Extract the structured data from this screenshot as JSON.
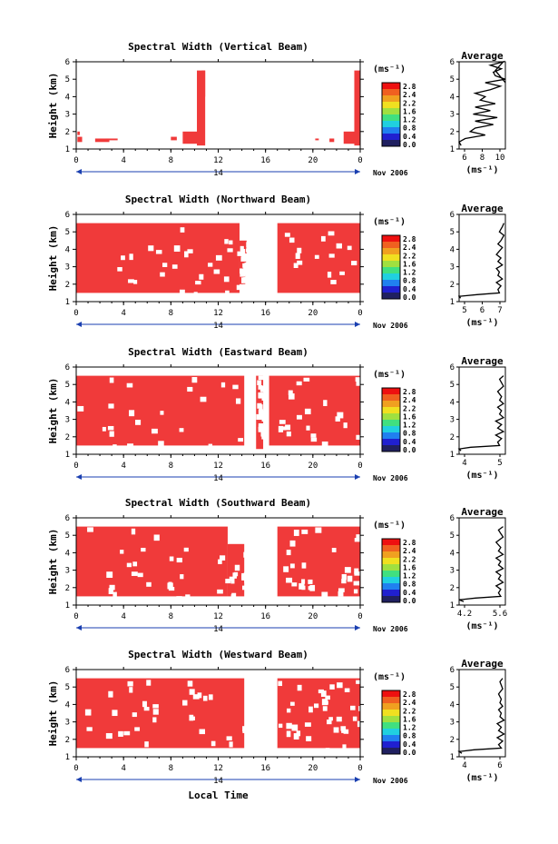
{
  "figure": {
    "xlabel": "Local Time",
    "date_label": "Nov 2006",
    "day_label": "14",
    "ylabel": "Height (km)",
    "unit": "(ms⁻¹)",
    "avg_title": "Average",
    "avg_xlabel": "(ms⁻¹)"
  },
  "colorbar": {
    "ticks": [
      "2.8",
      "2.4",
      "2.2",
      "1.6",
      "1.2",
      "0.8",
      "0.4",
      "0.0"
    ],
    "colors": [
      "#ee1010",
      "#f06020",
      "#f0a020",
      "#f0e020",
      "#a0e040",
      "#40e080",
      "#20d0e0",
      "#2080f0",
      "#2020d0",
      "#202060"
    ]
  },
  "chart_data": [
    {
      "type": "heatmap",
      "title": "Spectral Width (Vertical Beam)",
      "x_ticks": [
        "0",
        "4",
        "8",
        "12",
        "16",
        "20",
        "0"
      ],
      "y_ticks": [
        "1",
        "2",
        "3",
        "4",
        "5",
        "6"
      ],
      "xlim": [
        0,
        24
      ],
      "ylim": [
        1,
        6
      ],
      "blocks": [
        [
          0.1,
          0.5,
          1.4,
          1.7
        ],
        [
          0.1,
          0.3,
          1.8,
          2.0
        ],
        [
          1.6,
          2.8,
          1.4,
          1.6
        ],
        [
          2.5,
          3.5,
          1.5,
          1.6
        ],
        [
          8.0,
          8.5,
          1.5,
          1.7
        ],
        [
          9.0,
          10.4,
          1.3,
          2.0
        ],
        [
          10.2,
          10.9,
          1.2,
          5.5
        ],
        [
          10.6,
          10.9,
          4.0,
          5.5
        ],
        [
          20.2,
          20.5,
          1.5,
          1.6
        ],
        [
          21.4,
          21.8,
          1.4,
          1.6
        ],
        [
          22.6,
          24.0,
          1.3,
          2.0
        ],
        [
          23.5,
          24.0,
          1.2,
          5.5
        ]
      ],
      "avg": {
        "x_ticks": [
          "6",
          "8",
          "10"
        ],
        "xlim": [
          5.4,
          10
        ],
        "y_ticks": [
          "1",
          "2",
          "3",
          "4",
          "5",
          "6"
        ],
        "ylim": [
          1,
          6
        ],
        "x": [
          5.6,
          5.4,
          6.0,
          8.0,
          6.5,
          7.0,
          8.8,
          7.0,
          9.2,
          6.8,
          8.5,
          7.0,
          9.0,
          7.5,
          8.0,
          7.0,
          8.5,
          9.5,
          8.0,
          10.0,
          9.0,
          8.8,
          9.6,
          8.5,
          9.8,
          9.0,
          10.0
        ],
        "y": [
          1.2,
          1.4,
          1.6,
          1.8,
          2.0,
          2.2,
          2.4,
          2.6,
          2.8,
          3.0,
          3.2,
          3.4,
          3.6,
          3.8,
          4.0,
          4.2,
          4.4,
          4.6,
          4.8,
          5.0,
          5.2,
          5.4,
          5.6,
          5.8,
          6.0,
          5.5,
          4.8
        ]
      }
    },
    {
      "type": "heatmap",
      "title": "Spectral Width (Northward Beam)",
      "x_ticks": [
        "0",
        "4",
        "8",
        "12",
        "16",
        "20",
        "0"
      ],
      "y_ticks": [
        "1",
        "2",
        "3",
        "4",
        "5",
        "6"
      ],
      "xlim": [
        0,
        24
      ],
      "ylim": [
        1,
        6
      ],
      "blocks": [
        [
          0.0,
          13.8,
          1.5,
          5.5
        ],
        [
          13.8,
          14.4,
          2.0,
          4.5
        ],
        [
          17.0,
          24.0,
          1.5,
          5.5
        ]
      ],
      "avg": {
        "x_ticks": [
          "5",
          "6",
          "7"
        ],
        "xlim": [
          4.3,
          7.4
        ],
        "y_ticks": [
          "1",
          "2",
          "3",
          "4",
          "5",
          "6"
        ],
        "ylim": [
          1,
          6
        ],
        "x": [
          4.4,
          4.3,
          5.5,
          7.0,
          6.9,
          7.1,
          6.8,
          7.2,
          6.9,
          7.0,
          6.8,
          7.2,
          6.9,
          7.1,
          6.8,
          7.0,
          7.2,
          6.9,
          7.1,
          7.3,
          7.0,
          7.2,
          7.3
        ],
        "y": [
          1.2,
          1.3,
          1.4,
          1.5,
          1.7,
          1.9,
          2.1,
          2.3,
          2.5,
          2.7,
          2.9,
          3.1,
          3.3,
          3.5,
          3.7,
          3.9,
          4.1,
          4.3,
          4.5,
          4.8,
          5.0,
          5.3,
          5.5
        ]
      }
    },
    {
      "type": "heatmap",
      "title": "Spectral Width (Eastward Beam)",
      "x_ticks": [
        "0",
        "4",
        "8",
        "12",
        "16",
        "20",
        "0"
      ],
      "y_ticks": [
        "1",
        "2",
        "3",
        "4",
        "5",
        "6"
      ],
      "xlim": [
        0,
        24
      ],
      "ylim": [
        1,
        6
      ],
      "blocks": [
        [
          0.0,
          14.2,
          1.5,
          5.5
        ],
        [
          15.2,
          15.8,
          1.3,
          5.5
        ],
        [
          16.3,
          24.0,
          1.5,
          5.5
        ]
      ],
      "avg": {
        "x_ticks": [
          "4",
          "5"
        ],
        "xlim": [
          3.4,
          5.8
        ],
        "y_ticks": [
          "1",
          "2",
          "3",
          "4",
          "5",
          "6"
        ],
        "ylim": [
          1,
          6
        ],
        "x": [
          3.5,
          3.4,
          4.0,
          5.5,
          5.4,
          5.6,
          5.3,
          5.7,
          5.4,
          5.6,
          5.3,
          5.7,
          5.5,
          5.6,
          5.4,
          5.7,
          5.5,
          5.6,
          5.4,
          5.7,
          5.6,
          5.5,
          5.7
        ],
        "y": [
          1.2,
          1.3,
          1.4,
          1.5,
          1.7,
          1.9,
          2.1,
          2.3,
          2.5,
          2.7,
          2.9,
          3.1,
          3.3,
          3.5,
          3.7,
          3.9,
          4.1,
          4.3,
          4.6,
          4.9,
          5.1,
          5.3,
          5.5
        ]
      }
    },
    {
      "type": "heatmap",
      "title": "Spectral Width (Southward Beam)",
      "x_ticks": [
        "0",
        "4",
        "8",
        "12",
        "16",
        "20",
        "0"
      ],
      "y_ticks": [
        "1",
        "2",
        "3",
        "4",
        "5",
        "6"
      ],
      "xlim": [
        0,
        24
      ],
      "ylim": [
        1,
        6
      ],
      "blocks": [
        [
          0.0,
          12.8,
          1.5,
          5.5
        ],
        [
          12.8,
          14.2,
          1.5,
          4.5
        ],
        [
          17.0,
          24.0,
          1.5,
          5.5
        ]
      ],
      "avg": {
        "x_ticks": [
          "4.2",
          "5.6"
        ],
        "xlim": [
          3.8,
          5.8
        ],
        "y_ticks": [
          "1",
          "2",
          "3",
          "4",
          "5",
          "6"
        ],
        "ylim": [
          1,
          6
        ],
        "x": [
          4.0,
          3.8,
          4.5,
          5.6,
          5.5,
          5.6,
          5.4,
          5.7,
          5.5,
          5.6,
          5.4,
          5.7,
          5.5,
          5.6,
          5.4,
          5.7,
          5.5,
          5.6,
          5.4,
          5.7,
          5.6,
          5.5,
          5.7
        ],
        "y": [
          1.2,
          1.3,
          1.4,
          1.5,
          1.7,
          1.9,
          2.1,
          2.3,
          2.5,
          2.7,
          2.9,
          3.1,
          3.3,
          3.5,
          3.7,
          3.9,
          4.1,
          4.3,
          4.6,
          4.9,
          5.1,
          5.3,
          5.5
        ]
      }
    },
    {
      "type": "heatmap",
      "title": "Spectral Width (Westward Beam)",
      "x_ticks": [
        "0",
        "4",
        "8",
        "12",
        "16",
        "20",
        "0"
      ],
      "y_ticks": [
        "1",
        "2",
        "3",
        "4",
        "5",
        "6"
      ],
      "xlim": [
        0,
        24
      ],
      "ylim": [
        1,
        6
      ],
      "blocks": [
        [
          0.0,
          14.2,
          1.5,
          5.5
        ],
        [
          17.0,
          24.0,
          1.5,
          5.5
        ]
      ],
      "avg": {
        "x_ticks": [
          "4",
          "6"
        ],
        "xlim": [
          3.4,
          6.8
        ],
        "y_ticks": [
          "1",
          "2",
          "3",
          "4",
          "5",
          "6"
        ],
        "ylim": [
          1,
          6
        ],
        "x": [
          3.6,
          3.4,
          4.5,
          6.5,
          6.3,
          6.6,
          6.2,
          6.7,
          6.3,
          6.5,
          6.2,
          6.7,
          6.4,
          6.5,
          6.3,
          6.6,
          6.4,
          6.5,
          6.3,
          6.6,
          6.5,
          6.4,
          6.6
        ],
        "y": [
          1.2,
          1.3,
          1.4,
          1.5,
          1.7,
          1.9,
          2.1,
          2.3,
          2.5,
          2.7,
          2.9,
          3.1,
          3.3,
          3.5,
          3.7,
          3.9,
          4.1,
          4.3,
          4.6,
          4.9,
          5.1,
          5.3,
          5.5
        ]
      }
    }
  ]
}
